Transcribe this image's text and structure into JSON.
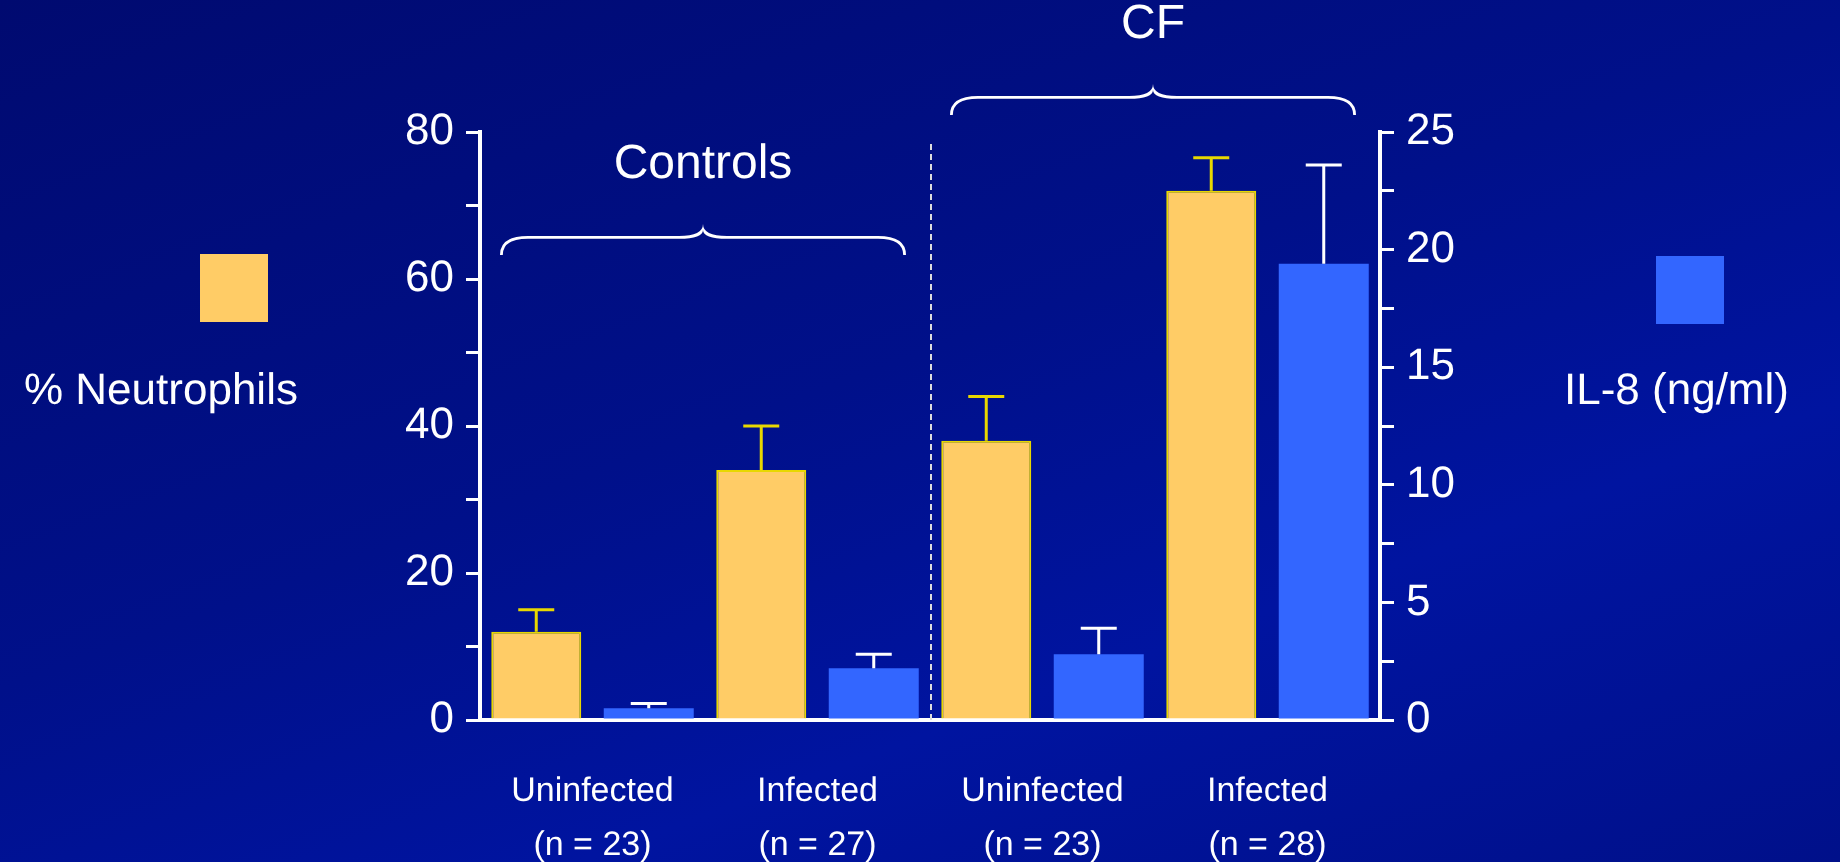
{
  "chart_data": {
    "type": "bar",
    "categories": [
      "Uninfected\n(n = 23)",
      "Infected\n(n = 27)",
      "Uninfected\n(n = 23)",
      "Infected\n(n = 28)"
    ],
    "series": [
      {
        "color": "#ffcc66",
        "values": [
          12,
          34,
          38,
          72
        ],
        "errors": [
          [
            12,
            15
          ],
          [
            34,
            40
          ],
          [
            38,
            44
          ],
          [
            72,
            76.5
          ]
        ]
      },
      {
        "color": "#3366ff",
        "axis": "y2",
        "values": [
          0.5,
          2.2,
          2.8,
          19.4
        ],
        "errors": [
          [
            0.5,
            0.7
          ],
          [
            2.2,
            2.8
          ],
          [
            2.8,
            3.9
          ],
          [
            19.4,
            23.6
          ]
        ]
      }
    ],
    "ylabel": "% Neutrophils",
    "y2label": "IL-8 (ng/ml)",
    "ylim": [
      0,
      80
    ],
    "yticks": [
      0,
      {
        "value": 10,
        "label": null
      },
      20,
      {
        "value": 30,
        "label": null
      },
      40,
      {
        "value": 50,
        "label": null
      },
      60,
      {
        "value": 70,
        "label": null
      },
      80
    ],
    "y2lim": [
      0,
      25
    ],
    "y2ticks": [
      0,
      {
        "value": 2.5,
        "label": null
      },
      5,
      {
        "value": 7.5,
        "label": null
      },
      10,
      {
        "value": 12.5,
        "label": null
      },
      15,
      {
        "value": 17.5,
        "label": null
      },
      20,
      {
        "value": 22.5,
        "label": null
      },
      25
    ],
    "annotations": [
      "Controls",
      "CF"
    ],
    "grid": false,
    "legend": false
  }
}
